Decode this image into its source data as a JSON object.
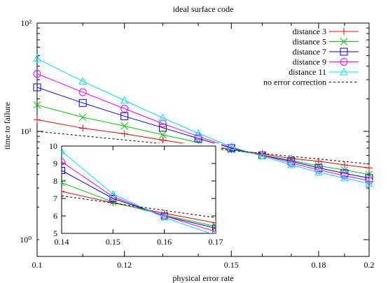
{
  "chart_data": [
    {
      "type": "line",
      "title": "ideal surface code",
      "xlabel": "physical error rate",
      "ylabel": "time to failure",
      "xscale": "log",
      "yscale": "log",
      "xlim": [
        0.1,
        0.2
      ],
      "ylim": [
        0.7,
        100
      ],
      "xticks": [
        0.1,
        0.12,
        0.15,
        0.18,
        0.2
      ],
      "xtick_labels": [
        "0.1",
        "0.12",
        "0.15",
        "0.18",
        "0.2"
      ],
      "yticks": [
        1,
        10,
        100
      ],
      "ytick_labels": [
        "10⁰",
        "10¹",
        "10²"
      ],
      "legend_position": "top-right",
      "series": [
        {
          "name": "distance 3",
          "color": "#ff0000",
          "marker": "plus",
          "x": [
            0.1,
            0.11,
            0.12,
            0.13,
            0.14,
            0.15,
            0.16,
            0.17,
            0.18,
            0.19,
            0.2
          ],
          "y": [
            12.8,
            10.7,
            9.5,
            8.3,
            7.4,
            6.8,
            6.2,
            5.6,
            5.3,
            4.9,
            4.6
          ]
        },
        {
          "name": "distance 5",
          "color": "#00cc00",
          "marker": "cross",
          "x": [
            0.1,
            0.11,
            0.12,
            0.13,
            0.14,
            0.15,
            0.16,
            0.17,
            0.18,
            0.19,
            0.2
          ],
          "y": [
            17.5,
            13.5,
            11.2,
            9.3,
            7.9,
            6.8,
            6.05,
            5.4,
            4.8,
            4.4,
            4.0
          ]
        },
        {
          "name": "distance 7",
          "color": "#0000ff",
          "marker": "square",
          "x": [
            0.1,
            0.11,
            0.12,
            0.13,
            0.14,
            0.15,
            0.16,
            0.17,
            0.18,
            0.19,
            0.2
          ],
          "y": [
            25.5,
            18.3,
            13.8,
            10.8,
            8.6,
            7.0,
            6.0,
            5.3,
            4.6,
            4.1,
            3.7
          ]
        },
        {
          "name": "distance 9",
          "color": "#ff00ff",
          "marker": "circle",
          "x": [
            0.1,
            0.11,
            0.12,
            0.13,
            0.14,
            0.15,
            0.16,
            0.17,
            0.18,
            0.19,
            0.2
          ],
          "y": [
            34.0,
            23.0,
            16.2,
            11.8,
            9.0,
            7.1,
            6.0,
            5.1,
            4.4,
            3.9,
            3.5
          ]
        },
        {
          "name": "distance 11",
          "color": "#00e5ee",
          "marker": "triangle",
          "x": [
            0.1,
            0.11,
            0.12,
            0.13,
            0.14,
            0.15,
            0.16,
            0.17,
            0.18,
            0.19,
            0.2
          ],
          "y": [
            47.0,
            29.0,
            19.3,
            13.3,
            9.6,
            7.2,
            5.9,
            4.9,
            4.2,
            3.7,
            3.3
          ]
        },
        {
          "name": "no error correction",
          "color": "#000000",
          "marker": "none",
          "dash": true,
          "x": [
            0.1,
            0.2
          ],
          "y": [
            10.0,
            5.0
          ]
        }
      ]
    },
    {
      "type": "line",
      "title": "",
      "xlabel": "",
      "ylabel": "",
      "xlim": [
        0.14,
        0.17
      ],
      "ylim": [
        5,
        10
      ],
      "xticks": [
        0.14,
        0.15,
        0.16,
        0.17
      ],
      "xtick_labels": [
        "0.14",
        "0.15",
        "0.16",
        "0.17"
      ],
      "yticks": [
        5,
        6,
        7,
        8,
        9,
        10
      ],
      "ytick_labels": [
        "5",
        "6",
        "7",
        "8",
        "9",
        "10"
      ],
      "series": [
        {
          "name": "distance 3",
          "color": "#ff0000",
          "marker": "plus",
          "x": [
            0.14,
            0.15,
            0.16,
            0.17
          ],
          "y": [
            7.4,
            6.75,
            6.15,
            5.6
          ]
        },
        {
          "name": "distance 5",
          "color": "#00cc00",
          "marker": "cross",
          "x": [
            0.14,
            0.15,
            0.16,
            0.17
          ],
          "y": [
            7.9,
            6.8,
            6.05,
            5.4
          ]
        },
        {
          "name": "distance 7",
          "color": "#0000ff",
          "marker": "square",
          "x": [
            0.14,
            0.15,
            0.16,
            0.17
          ],
          "y": [
            8.6,
            7.0,
            6.0,
            5.3
          ]
        },
        {
          "name": "distance 9",
          "color": "#ff00ff",
          "marker": "circle",
          "x": [
            0.14,
            0.15,
            0.16,
            0.17
          ],
          "y": [
            9.1,
            7.1,
            6.0,
            5.1
          ]
        },
        {
          "name": "distance 11",
          "color": "#00e5ee",
          "marker": "triangle",
          "x": [
            0.14,
            0.15,
            0.16,
            0.17
          ],
          "y": [
            9.7,
            7.25,
            5.9,
            4.9
          ]
        },
        {
          "name": "no error correction",
          "color": "#000000",
          "marker": "none",
          "dash": true,
          "x": [
            0.14,
            0.17
          ],
          "y": [
            7.15,
            5.9
          ]
        }
      ]
    }
  ]
}
